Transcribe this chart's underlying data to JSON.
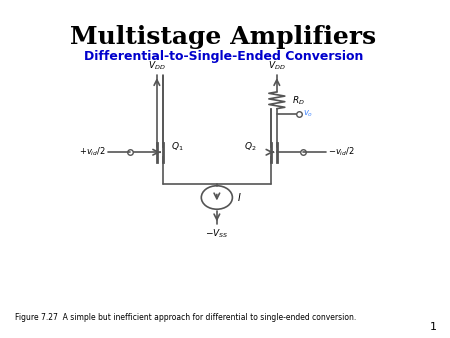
{
  "title": "Multistage Amplifiers",
  "subtitle": "Differential-to-Single-Ended Conversion",
  "subtitle_color": "#0000CC",
  "title_color": "#000000",
  "background_color": "#ffffff",
  "caption": "Figure 7.27  A simple but inefficient approach for differential to single-ended conversion.",
  "page_number": "1",
  "circuit": {
    "vdd_label": "$V_{DD}$",
    "vss_label": "$-V_{SS}$",
    "rd_label": "$R_D$",
    "vo_label": "$v_o$",
    "q1_label": "$Q_1$",
    "q2_label": "$Q_2$",
    "vin_pos_label": "$+v_{id}/2$",
    "vin_neg_label": "$-v_{id}/2$",
    "i_label": "$I$"
  }
}
